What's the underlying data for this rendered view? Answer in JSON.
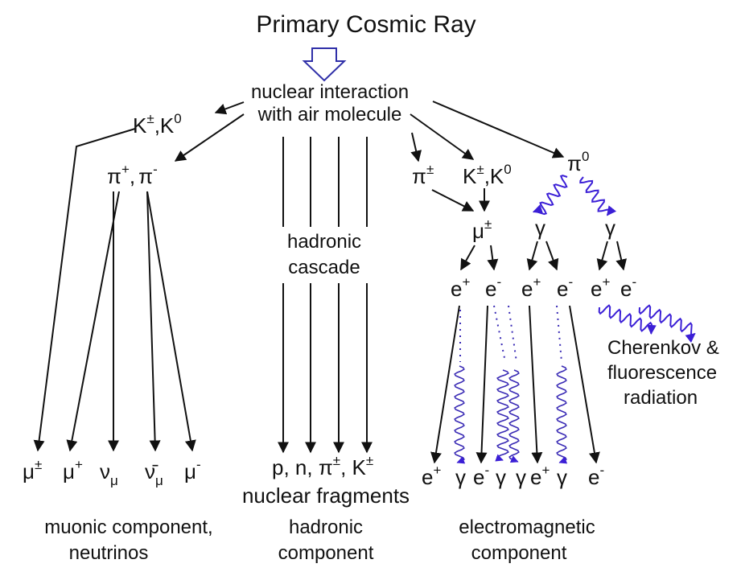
{
  "title": "Primary Cosmic Ray",
  "interaction": {
    "line1": "nuclear interaction",
    "line2": "with air molecule"
  },
  "particles": {
    "kaon_left": {
      "a": "K",
      "a_sup": "±",
      "sep": ",",
      "b": "K",
      "b_sup": "0"
    },
    "pions_left": {
      "a": "π",
      "a_sup": "+",
      "sep": ",",
      "b": "π",
      "b_sup": "-"
    },
    "pi_pm": {
      "a": "π",
      "a_sup": "±"
    },
    "kaon_right": {
      "a": "K",
      "a_sup": "±",
      "sep": ",",
      "b": "K",
      "b_sup": "0"
    },
    "pi0": {
      "a": "π",
      "a_sup": "0"
    },
    "mu_pm": {
      "a": "μ",
      "a_sup": "±"
    },
    "gamma": "γ"
  },
  "hadronic_cascade": {
    "line1": "hadronic",
    "line2": "cascade"
  },
  "electrons_row": [
    {
      "a": "e",
      "sup": "+"
    },
    {
      "a": "e",
      "sup": "-"
    },
    {
      "a": "e",
      "sup": "+"
    },
    {
      "a": "e",
      "sup": "-"
    },
    {
      "a": "e",
      "sup": "+"
    },
    {
      "a": "e",
      "sup": "-"
    }
  ],
  "cherenkov": {
    "line1": "Cherenkov &",
    "line2": "fluorescence",
    "line3": "radiation"
  },
  "bottom_muonic": [
    {
      "a": "μ",
      "sup": "±",
      "sub": ""
    },
    {
      "a": "μ",
      "sup": "+",
      "sub": ""
    },
    {
      "a": "ν",
      "sup": "",
      "sub": "μ"
    },
    {
      "a": "ν̄",
      "sup": "",
      "sub": "μ"
    },
    {
      "a": "μ",
      "sup": "-",
      "sub": ""
    }
  ],
  "bottom_hadronic": {
    "a": "p, n, π",
    "a_sup": "±",
    "sep": ", K",
    "b_sup": "±"
  },
  "nuclear_fragments": "nuclear fragments",
  "bottom_em": [
    {
      "a": "e",
      "sup": "+"
    },
    {
      "a": "γ",
      "sup": ""
    },
    {
      "a": "e",
      "sup": "-"
    },
    {
      "a": "γ",
      "sup": ""
    },
    {
      "a": "γ",
      "sup": ""
    },
    {
      "a": "e",
      "sup": "+"
    },
    {
      "a": "γ",
      "sup": ""
    },
    {
      "a": "e",
      "sup": "-"
    }
  ],
  "footers": {
    "muonic": {
      "line1": "muonic component,",
      "line2": "neutrinos"
    },
    "hadronic": {
      "line1": "hadronic",
      "line2": "component"
    },
    "em": {
      "line1": "electromagnetic",
      "line2": "component"
    }
  },
  "colors": {
    "ink": "#111111",
    "photon": "#3b1fd6",
    "primary_arrow": "#2f2fa8"
  }
}
